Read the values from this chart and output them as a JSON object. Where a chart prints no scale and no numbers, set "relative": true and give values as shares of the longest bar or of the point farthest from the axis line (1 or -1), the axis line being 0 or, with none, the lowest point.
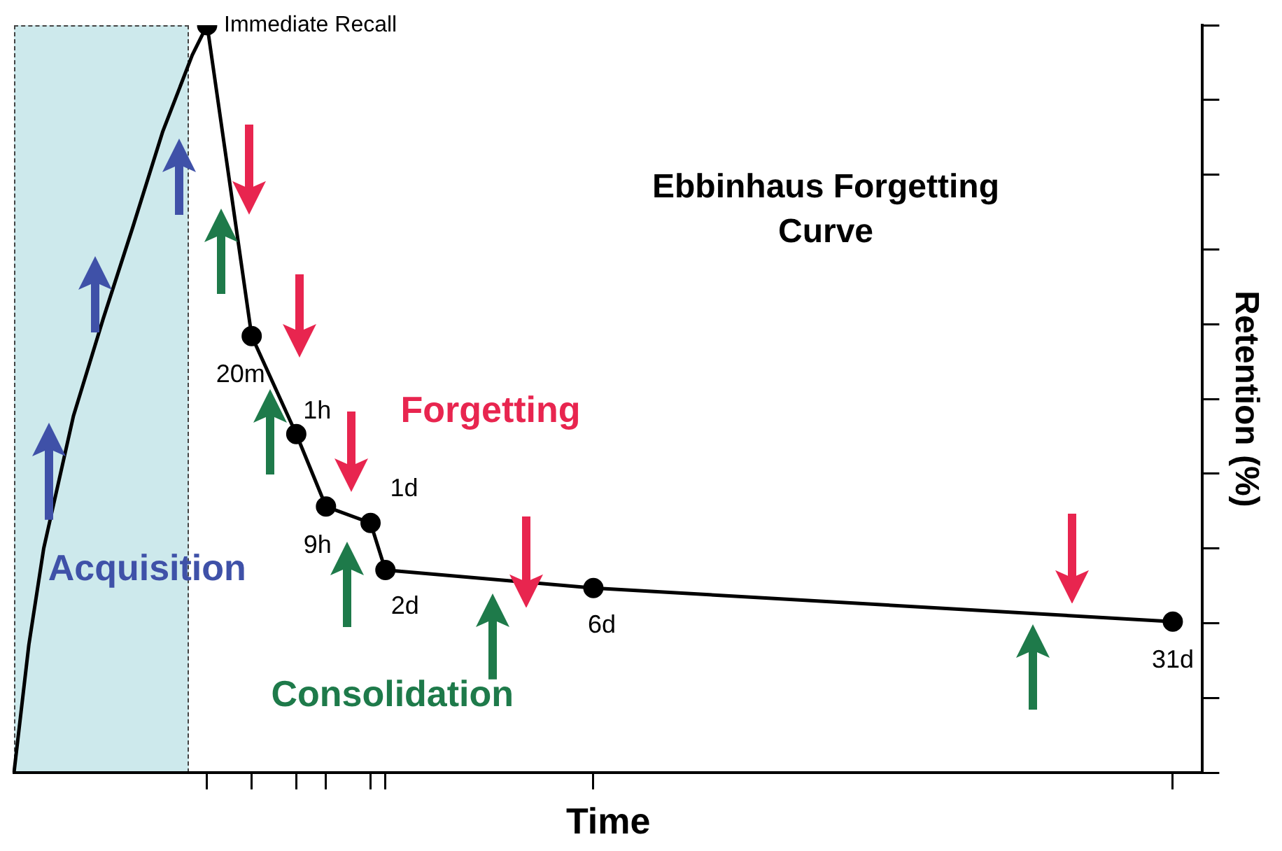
{
  "chart_data": {
    "type": "line",
    "title": "Ebbinhaus Forgetting Curve",
    "xlabel": "Time",
    "ylabel": "Retention (%)",
    "relative": true,
    "categories": [
      null,
      null,
      null,
      null,
      null,
      null,
      null,
      null,
      null,
      null,
      null,
      null,
      null,
      null,
      null,
      null,
      null,
      null,
      null,
      null,
      null,
      null,
      null,
      null,
      null,
      null,
      null,
      null,
      null,
      null,
      null,
      null,
      null,
      null,
      null,
      null,
      null,
      null,
      null,
      null,
      null,
      null,
      null,
      null,
      null,
      null,
      null,
      null,
      null,
      null,
      null,
      null,
      null,
      null,
      null,
      null,
      null,
      null,
      null,
      null,
      null,
      null,
      null,
      null,
      null,
      null,
      null,
      null,
      null,
      null,
      null,
      null,
      null,
      null,
      null,
      null,
      null,
      null,
      null,
      null,
      null
    ],
    "series": [
      {
        "color": "#000000",
        "marker": "none",
        "values": [
          0,
          0.171,
          0.3,
          null,
          0.477,
          null,
          0.607,
          null,
          0.73,
          null,
          0.857,
          null,
          0.96,
          1,
          null,
          null,
          null,
          null,
          null,
          null,
          null,
          null,
          null,
          null,
          null,
          null,
          null,
          null,
          null,
          null,
          null,
          null,
          null,
          null,
          null,
          null,
          null,
          null,
          null,
          null,
          null,
          null,
          null,
          null,
          null,
          null,
          null,
          null,
          null,
          null,
          null,
          null,
          null,
          null,
          null,
          null,
          null,
          null,
          null,
          null,
          null,
          null,
          null,
          null,
          null,
          null,
          null,
          null,
          null,
          null,
          null,
          null,
          null,
          null,
          null,
          null,
          null,
          null,
          null,
          null,
          null
        ]
      },
      {
        "color": "#000000",
        "marker": "circle",
        "values": [
          null,
          null,
          null,
          null,
          null,
          null,
          null,
          null,
          null,
          null,
          null,
          null,
          null,
          1,
          null,
          null,
          0.584,
          null,
          null,
          0.453,
          null,
          0.356,
          null,
          null,
          0.334,
          0.271,
          null,
          null,
          null,
          null,
          null,
          null,
          null,
          null,
          null,
          null,
          null,
          null,
          null,
          0.247,
          null,
          null,
          null,
          null,
          null,
          null,
          null,
          null,
          null,
          null,
          null,
          null,
          null,
          null,
          null,
          null,
          null,
          null,
          null,
          null,
          null,
          null,
          null,
          null,
          null,
          null,
          null,
          null,
          null,
          null,
          null,
          null,
          null,
          null,
          null,
          null,
          null,
          null,
          0.202,
          null,
          null
        ]
      }
    ],
    "annotations": [
      "Immediate Recall",
      "20m",
      "1h",
      "9h",
      "1d",
      "2d",
      "6d",
      "31d",
      "Forgetting",
      "Consolidation",
      "Acquisition"
    ]
  }
}
